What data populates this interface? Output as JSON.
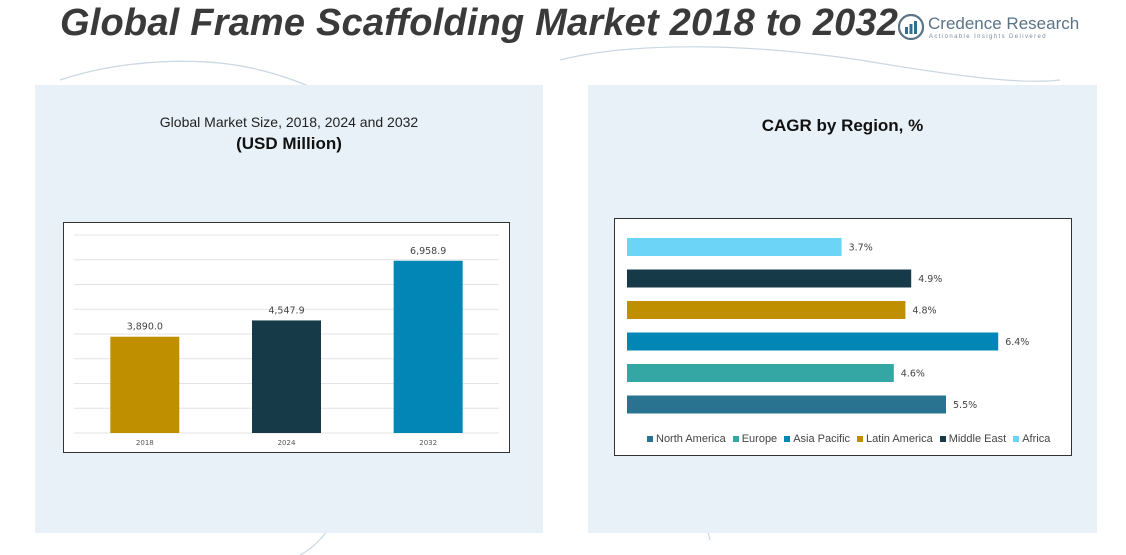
{
  "header": {
    "title": "Global Frame Scaffolding Market 2018 to 2032",
    "brand_name": "Credence Research",
    "brand_tagline": "Actionable Insights Delivered"
  },
  "colors": {
    "panel_bg": "#e8f1f7",
    "bar_2018": "#bf8f00",
    "bar_2024": "#163a48",
    "bar_2032": "#0286b5"
  },
  "left_panel": {
    "subtitle": "Global Market Size, 2018, 2024 and 2032",
    "unit": "(USD Million)"
  },
  "right_panel": {
    "title": "CAGR by Region, %"
  },
  "chart_data": [
    {
      "type": "bar",
      "title": "Global Market Size, 2018, 2024 and 2032",
      "ylabel": "USD Million",
      "categories": [
        "2018",
        "2024",
        "2032"
      ],
      "values": [
        3890.0,
        4547.9,
        6958.9
      ],
      "value_labels": [
        "3,890.0",
        "4,547.9",
        "6,958.9"
      ],
      "colors": [
        "#bf8f00",
        "#163a48",
        "#0286b5"
      ],
      "ylim": [
        0,
        8000
      ],
      "grid": true
    },
    {
      "type": "bar",
      "orientation": "horizontal",
      "title": "CAGR by Region, %",
      "categories": [
        "North America",
        "Europe",
        "Asia Pacific",
        "Latin America",
        "Middle East",
        "Africa"
      ],
      "values": [
        5.5,
        4.6,
        6.4,
        4.8,
        4.9,
        3.7
      ],
      "value_labels": [
        "5.5%",
        "4.6%",
        "6.4%",
        "4.8%",
        "4.9%",
        "3.7%"
      ],
      "colors": [
        "#2a7390",
        "#34a6a3",
        "#0286b5",
        "#bf8f00",
        "#163a48",
        "#6cd4f7"
      ],
      "xlim": [
        0,
        7
      ],
      "legend_position": "bottom"
    }
  ]
}
